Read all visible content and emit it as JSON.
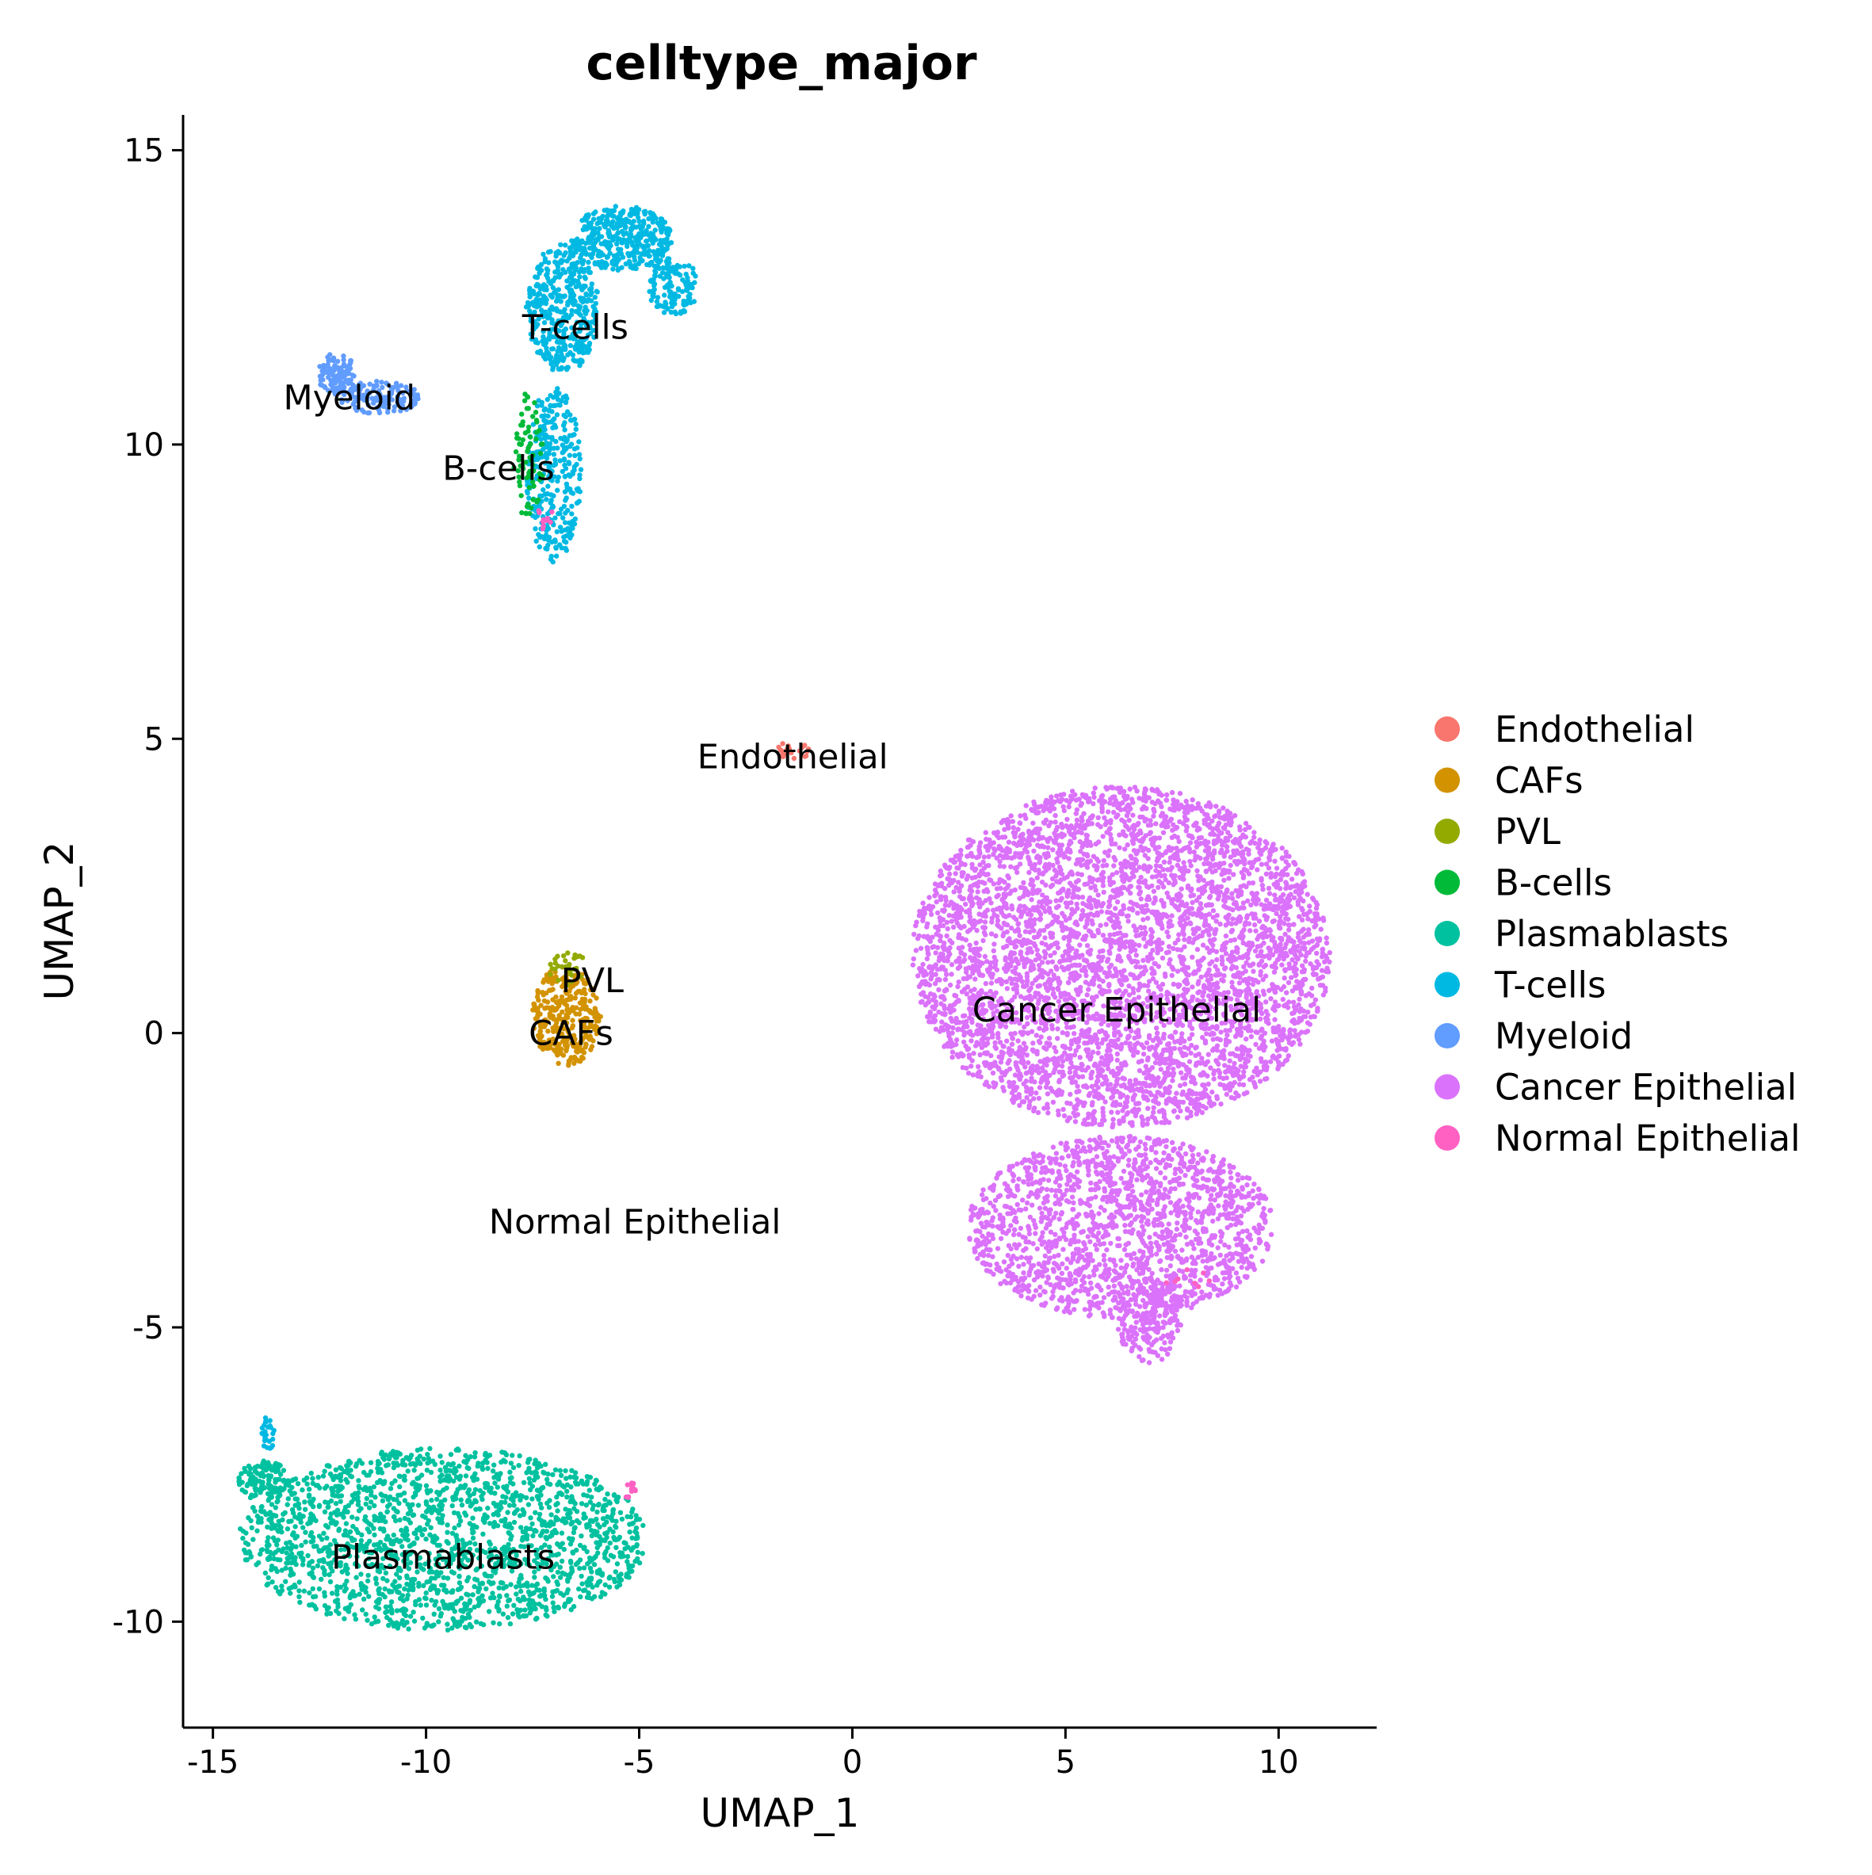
{
  "chart_data": {
    "type": "scatter",
    "title": "celltype_major",
    "xlabel": "UMAP_1",
    "ylabel": "UMAP_2",
    "xlim": [
      -15.7,
      12.3
    ],
    "ylim": [
      -11.8,
      15.6
    ],
    "xticks": [
      -15,
      -10,
      -5,
      0,
      5,
      10
    ],
    "yticks": [
      -10,
      -5,
      0,
      5,
      10,
      15
    ],
    "grid": false,
    "legend_position": "right",
    "series": [
      {
        "name": "Endothelial",
        "color": "#F8766D",
        "regions": [
          {
            "shape": "ellipse",
            "cx": -1.4,
            "cy": 4.8,
            "rx": 0.4,
            "ry": 0.15,
            "n": 20
          }
        ]
      },
      {
        "name": "CAFs",
        "color": "#D39200",
        "regions": [
          {
            "shape": "ellipse",
            "cx": -6.7,
            "cy": 0.3,
            "rx": 0.8,
            "ry": 0.85,
            "n": 320
          }
        ]
      },
      {
        "name": "PVL",
        "color": "#93AA00",
        "regions": [
          {
            "shape": "ellipse",
            "cx": -6.7,
            "cy": 1.1,
            "rx": 0.5,
            "ry": 0.3,
            "n": 30
          }
        ]
      },
      {
        "name": "B-cells",
        "color": "#00BA38",
        "regions": [
          {
            "shape": "ellipse",
            "cx": -7.6,
            "cy": 9.8,
            "rx": 0.35,
            "ry": 1.1,
            "n": 80
          }
        ]
      },
      {
        "name": "Plasmablasts",
        "color": "#00C19F",
        "regions": [
          {
            "shape": "ellipse",
            "cx": -9.6,
            "cy": -8.6,
            "rx": 4.8,
            "ry": 1.55,
            "n": 1900
          },
          {
            "shape": "ellipse",
            "cx": -13.8,
            "cy": -7.6,
            "rx": 0.6,
            "ry": 0.35,
            "n": 120
          }
        ]
      },
      {
        "name": "T-cells",
        "color": "#00B9E3",
        "regions": [
          {
            "shape": "ellipse",
            "cx": -7.0,
            "cy": 9.5,
            "rx": 0.65,
            "ry": 1.5,
            "n": 320
          },
          {
            "shape": "ellipse",
            "cx": -6.8,
            "cy": 12.3,
            "rx": 0.85,
            "ry": 1.1,
            "n": 420
          },
          {
            "shape": "ellipse",
            "cx": -5.4,
            "cy": 13.5,
            "rx": 1.2,
            "ry": 0.55,
            "n": 380
          },
          {
            "shape": "ellipse",
            "cx": -4.2,
            "cy": 12.7,
            "rx": 0.6,
            "ry": 0.5,
            "n": 130
          },
          {
            "shape": "ellipse",
            "cx": -13.7,
            "cy": -6.8,
            "rx": 0.15,
            "ry": 0.35,
            "n": 25
          }
        ]
      },
      {
        "name": "Myeloid",
        "color": "#619CFF",
        "regions": [
          {
            "shape": "ellipse",
            "cx": -12.1,
            "cy": 11.2,
            "rx": 0.45,
            "ry": 0.35,
            "n": 100
          },
          {
            "shape": "ellipse",
            "cx": -11.1,
            "cy": 10.8,
            "rx": 0.95,
            "ry": 0.28,
            "n": 140
          }
        ]
      },
      {
        "name": "Cancer Epithelial",
        "color": "#DB72FB",
        "regions": [
          {
            "shape": "ellipse",
            "cx": 6.3,
            "cy": 1.3,
            "rx": 4.9,
            "ry": 2.9,
            "n": 4700
          },
          {
            "shape": "ellipse",
            "cx": 6.3,
            "cy": -3.3,
            "rx": 3.6,
            "ry": 1.55,
            "n": 1700
          },
          {
            "shape": "ellipse",
            "cx": 7.0,
            "cy": -4.9,
            "rx": 0.8,
            "ry": 0.7,
            "n": 200
          }
        ]
      },
      {
        "name": "Normal Epithelial",
        "color": "#FF61C3",
        "regions": [
          {
            "shape": "ellipse",
            "cx": -5.2,
            "cy": -7.8,
            "rx": 0.12,
            "ry": 0.2,
            "n": 14
          },
          {
            "shape": "ellipse",
            "cx": -7.2,
            "cy": 8.8,
            "rx": 0.18,
            "ry": 0.25,
            "n": 10
          },
          {
            "shape": "ellipse",
            "cx": 7.8,
            "cy": -4.2,
            "rx": 0.8,
            "ry": 0.2,
            "n": 8
          }
        ]
      }
    ],
    "annotations": [
      {
        "text": "T-cells",
        "x": -6.5,
        "y": 12.0
      },
      {
        "text": "Myeloid",
        "x": -11.8,
        "y": 10.8
      },
      {
        "text": "B-cells",
        "x": -8.3,
        "y": 9.6
      },
      {
        "text": "Endothelial",
        "x": -1.4,
        "y": 4.7
      },
      {
        "text": "PVL",
        "x": -6.1,
        "y": 0.9
      },
      {
        "text": "CAFs",
        "x": -6.6,
        "y": 0.0
      },
      {
        "text": "Cancer Epithelial",
        "x": 6.2,
        "y": 0.4
      },
      {
        "text": "Normal Epithelial",
        "x": -5.1,
        "y": -3.2
      },
      {
        "text": "Plasmablasts",
        "x": -9.6,
        "y": -8.9
      }
    ]
  }
}
